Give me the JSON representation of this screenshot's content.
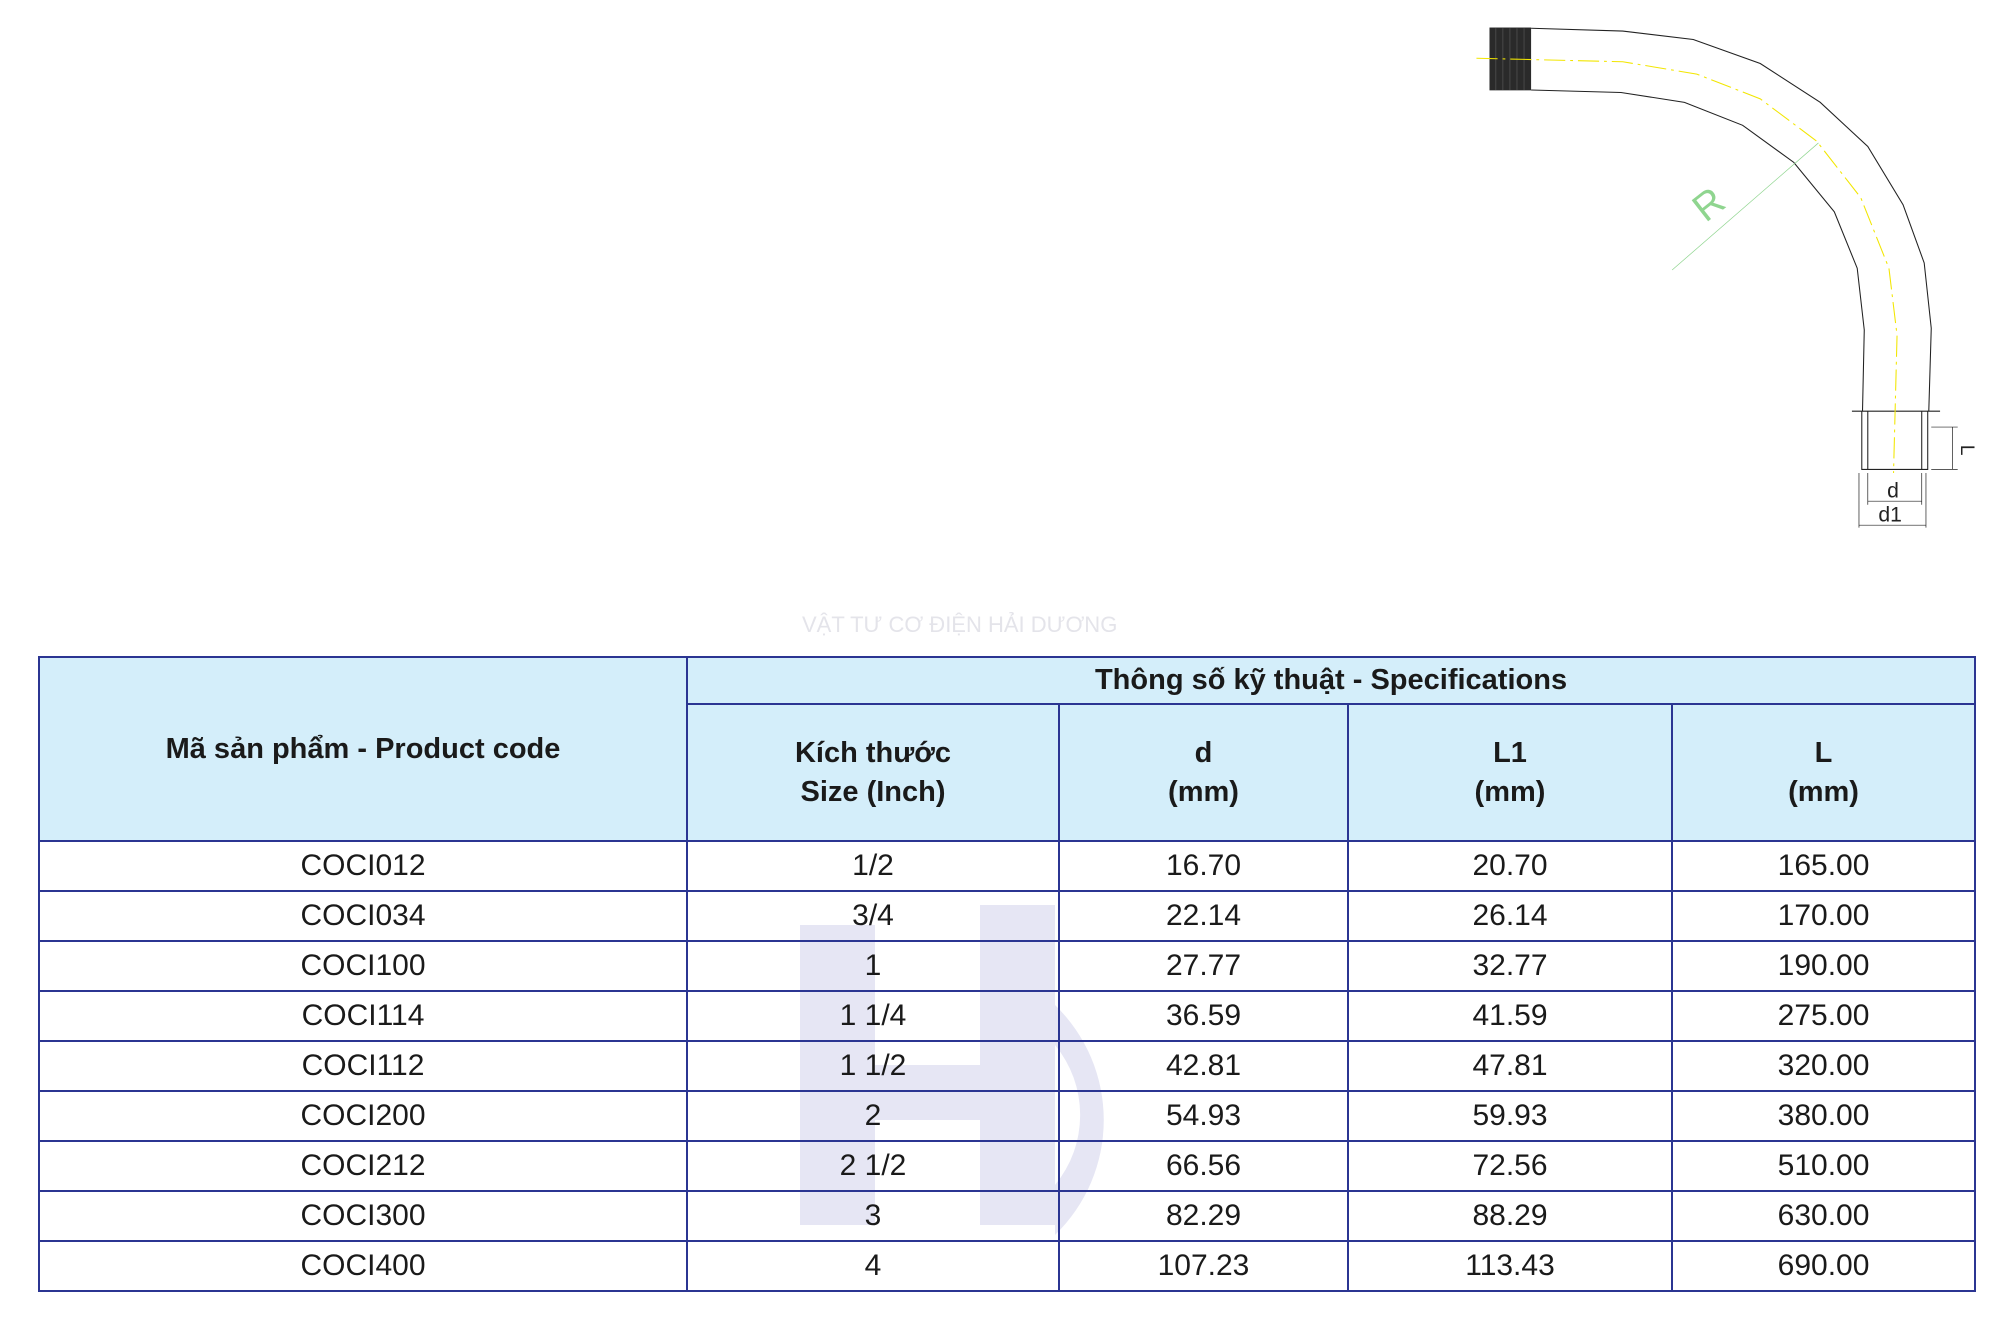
{
  "drawing": {
    "labels": {
      "radius": "R",
      "inner_diameter": "d",
      "outer_diameter": "d1",
      "thread_length": "L"
    }
  },
  "watermark": {
    "text": "VẬT TƯ CƠ ĐIỆN HẢI DƯƠNG"
  },
  "table": {
    "header": {
      "product_code": "Mã sản phẩm - Product code",
      "group": "Thông số kỹ thuật - Specifications",
      "columns": [
        {
          "line1": "Kích thước",
          "line2": "Size (Inch)"
        },
        {
          "line1": "d",
          "line2": "(mm)"
        },
        {
          "line1": "L1",
          "line2": "(mm)"
        },
        {
          "line1": "L",
          "line2": "(mm)"
        }
      ]
    },
    "rows": [
      {
        "code": "COCI012",
        "size": "1/2",
        "d": "16.70",
        "l1": "20.70",
        "l": "165.00"
      },
      {
        "code": "COCI034",
        "size": "3/4",
        "d": "22.14",
        "l1": "26.14",
        "l": "170.00"
      },
      {
        "code": "COCI100",
        "size": "1",
        "d": "27.77",
        "l1": "32.77",
        "l": "190.00"
      },
      {
        "code": "COCI114",
        "size": "1 1/4",
        "d": "36.59",
        "l1": "41.59",
        "l": "275.00"
      },
      {
        "code": "COCI112",
        "size": "1 1/2",
        "d": "42.81",
        "l1": "47.81",
        "l": "320.00"
      },
      {
        "code": "COCI200",
        "size": "2",
        "d": "54.93",
        "l1": "59.93",
        "l": "380.00"
      },
      {
        "code": "COCI212",
        "size": "2 1/2",
        "d": "66.56",
        "l1": "72.56",
        "l": "510.00"
      },
      {
        "code": "COCI300",
        "size": "3",
        "d": "82.29",
        "l1": "88.29",
        "l": "630.00"
      },
      {
        "code": "COCI400",
        "size": "4",
        "d": "107.23",
        "l1": "113.43",
        "l": "690.00"
      }
    ]
  },
  "colors": {
    "header_bg": "#d4eefa",
    "border": "#2b3592",
    "centerline": "#f2e600",
    "dimension": "#8fd58f"
  }
}
